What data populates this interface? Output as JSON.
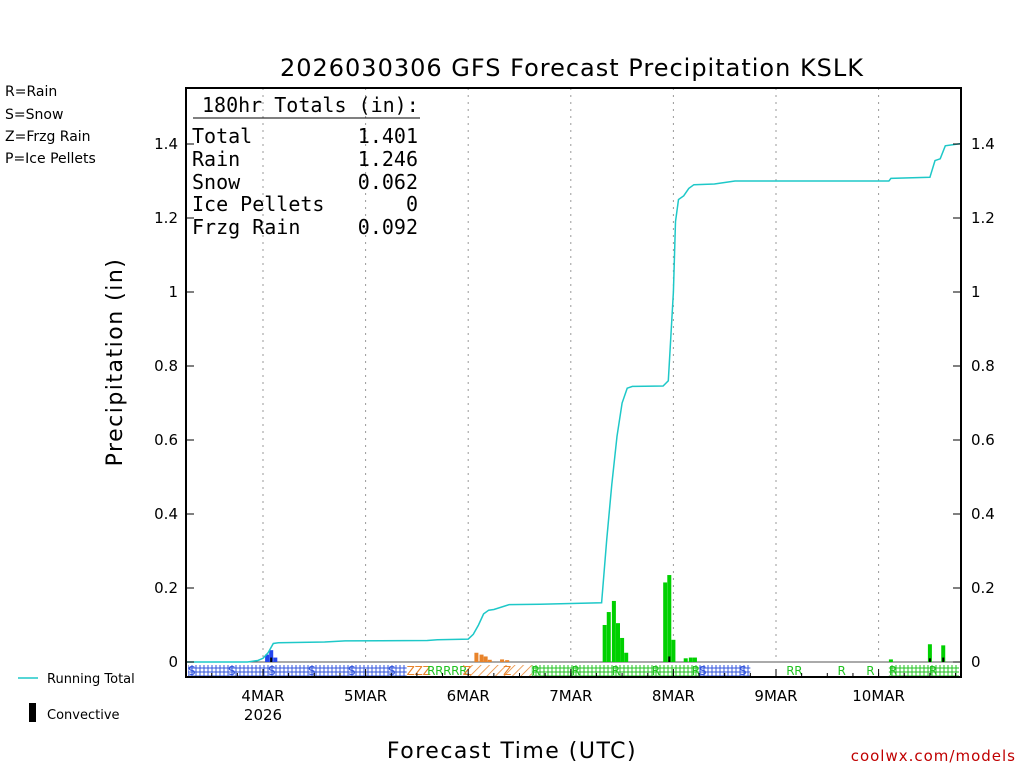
{
  "chart_data": {
    "type": "bar",
    "title": "2026030306 GFS Forecast Precipitation KSLK",
    "xlabel": "Forecast Time (UTC)",
    "ylabel": "Precipitation (in)",
    "ylim": [
      0,
      1.55
    ],
    "xlim_days": [
      3.25,
      10.8
    ],
    "y_ticks": [
      {
        "v": 0,
        "label": "0"
      },
      {
        "v": 0.2,
        "label": "0.2"
      },
      {
        "v": 0.4,
        "label": "0.4"
      },
      {
        "v": 0.6,
        "label": "0.6"
      },
      {
        "v": 0.8,
        "label": "0.8"
      },
      {
        "v": 1.0,
        "label": "1"
      },
      {
        "v": 1.2,
        "label": "1.2"
      },
      {
        "v": 1.4,
        "label": "1.4"
      }
    ],
    "x_ticks": [
      {
        "day": 4,
        "label": "4MAR"
      },
      {
        "day": 5,
        "label": "5MAR"
      },
      {
        "day": 6,
        "label": "6MAR"
      },
      {
        "day": 7,
        "label": "7MAR"
      },
      {
        "day": 8,
        "label": "8MAR"
      },
      {
        "day": 9,
        "label": "9MAR"
      },
      {
        "day": 10,
        "label": "10MAR"
      }
    ],
    "year_label": "2026",
    "precip_legend": [
      {
        "label": "R=Rain",
        "color": "#22c322"
      },
      {
        "label": "S=Snow",
        "color": "#3355dd"
      },
      {
        "label": "Z=Frzg Rain",
        "color": "#e8832a"
      },
      {
        "label": "P=Ice Pellets",
        "color": "#e0208a"
      }
    ],
    "series_legend": {
      "running_total": "Running Total",
      "convective": "Convective"
    },
    "totals": {
      "header": "180hr Totals (in):",
      "rows": [
        {
          "label": "Total",
          "value": "1.401"
        },
        {
          "label": "Rain",
          "value": "1.246"
        },
        {
          "label": "Snow",
          "value": "0.062"
        },
        {
          "label": "Ice Pellets",
          "value": "0"
        },
        {
          "label": "Frzg Rain",
          "value": "0.092"
        }
      ]
    },
    "running_total": [
      [
        3.25,
        0
      ],
      [
        3.85,
        0
      ],
      [
        3.95,
        0.004
      ],
      [
        4.0,
        0.01
      ],
      [
        4.05,
        0.025
      ],
      [
        4.1,
        0.05
      ],
      [
        4.15,
        0.052
      ],
      [
        4.6,
        0.054
      ],
      [
        4.8,
        0.057
      ],
      [
        5.6,
        0.058
      ],
      [
        5.7,
        0.06
      ],
      [
        6.0,
        0.062
      ],
      [
        6.05,
        0.075
      ],
      [
        6.1,
        0.1
      ],
      [
        6.15,
        0.13
      ],
      [
        6.2,
        0.14
      ],
      [
        6.25,
        0.142
      ],
      [
        6.4,
        0.155
      ],
      [
        6.7,
        0.156
      ],
      [
        7.0,
        0.158
      ],
      [
        7.3,
        0.16
      ],
      [
        7.35,
        0.33
      ],
      [
        7.4,
        0.48
      ],
      [
        7.45,
        0.61
      ],
      [
        7.5,
        0.7
      ],
      [
        7.55,
        0.74
      ],
      [
        7.6,
        0.745
      ],
      [
        7.9,
        0.746
      ],
      [
        7.95,
        0.76
      ],
      [
        8.0,
        1.0
      ],
      [
        8.02,
        1.19
      ],
      [
        8.05,
        1.25
      ],
      [
        8.1,
        1.26
      ],
      [
        8.15,
        1.28
      ],
      [
        8.2,
        1.29
      ],
      [
        8.4,
        1.292
      ],
      [
        8.6,
        1.3
      ],
      [
        9.2,
        1.3
      ],
      [
        10.1,
        1.3
      ],
      [
        10.12,
        1.307
      ],
      [
        10.5,
        1.31
      ],
      [
        10.55,
        1.355
      ],
      [
        10.6,
        1.36
      ],
      [
        10.65,
        1.395
      ],
      [
        10.8,
        1.401
      ]
    ],
    "bars": [
      {
        "day": 4.04,
        "value": 0.02,
        "type": "snow"
      },
      {
        "day": 4.08,
        "value": 0.032,
        "type": "snow"
      },
      {
        "day": 4.12,
        "value": 0.012,
        "type": "snow"
      },
      {
        "day": 6.08,
        "value": 0.025,
        "type": "frzg"
      },
      {
        "day": 6.13,
        "value": 0.02,
        "type": "frzg"
      },
      {
        "day": 6.17,
        "value": 0.015,
        "type": "frzg"
      },
      {
        "day": 6.21,
        "value": 0.006,
        "type": "frzg"
      },
      {
        "day": 6.33,
        "value": 0.007,
        "type": "frzg"
      },
      {
        "day": 6.38,
        "value": 0.005,
        "type": "frzg"
      },
      {
        "day": 7.33,
        "value": 0.1,
        "type": "rain"
      },
      {
        "day": 7.37,
        "value": 0.135,
        "type": "rain"
      },
      {
        "day": 7.42,
        "value": 0.165,
        "type": "rain"
      },
      {
        "day": 7.46,
        "value": 0.105,
        "type": "rain"
      },
      {
        "day": 7.5,
        "value": 0.065,
        "type": "rain"
      },
      {
        "day": 7.54,
        "value": 0.025,
        "type": "rain"
      },
      {
        "day": 7.92,
        "value": 0.215,
        "type": "rain"
      },
      {
        "day": 7.96,
        "value": 0.235,
        "type": "rain"
      },
      {
        "day": 8.0,
        "value": 0.06,
        "type": "rain"
      },
      {
        "day": 8.12,
        "value": 0.01,
        "type": "rain"
      },
      {
        "day": 8.17,
        "value": 0.012,
        "type": "rain"
      },
      {
        "day": 8.21,
        "value": 0.012,
        "type": "rain"
      },
      {
        "day": 10.12,
        "value": 0.007,
        "type": "rain"
      },
      {
        "day": 10.5,
        "value": 0.048,
        "type": "rain"
      },
      {
        "day": 10.63,
        "value": 0.045,
        "type": "rain"
      }
    ],
    "convective": [
      {
        "day": 4.08,
        "value": 0.012
      },
      {
        "day": 7.96,
        "value": 0.015
      },
      {
        "day": 10.5,
        "value": 0.01
      },
      {
        "day": 10.63,
        "value": 0.012
      }
    ],
    "type_strip": [
      {
        "type": "S",
        "from": 3.25,
        "to": 5.4
      },
      {
        "type": "Z",
        "from": 5.4,
        "to": 5.6
      },
      {
        "type": "R",
        "from": 5.6,
        "to": 5.95
      },
      {
        "type": "Z",
        "from": 5.95,
        "to": 6.62
      },
      {
        "type": "R",
        "from": 6.62,
        "to": 8.25
      },
      {
        "type": "S",
        "from": 8.25,
        "to": 8.75
      },
      {
        "type": "R",
        "from": 9.1,
        "to": 9.18
      },
      {
        "type": "R",
        "from": 9.6,
        "to": 9.65
      },
      {
        "type": "R",
        "from": 9.88,
        "to": 9.93
      },
      {
        "type": "R",
        "from": 10.1,
        "to": 10.8
      }
    ]
  },
  "credit": "coolwx.com/models"
}
